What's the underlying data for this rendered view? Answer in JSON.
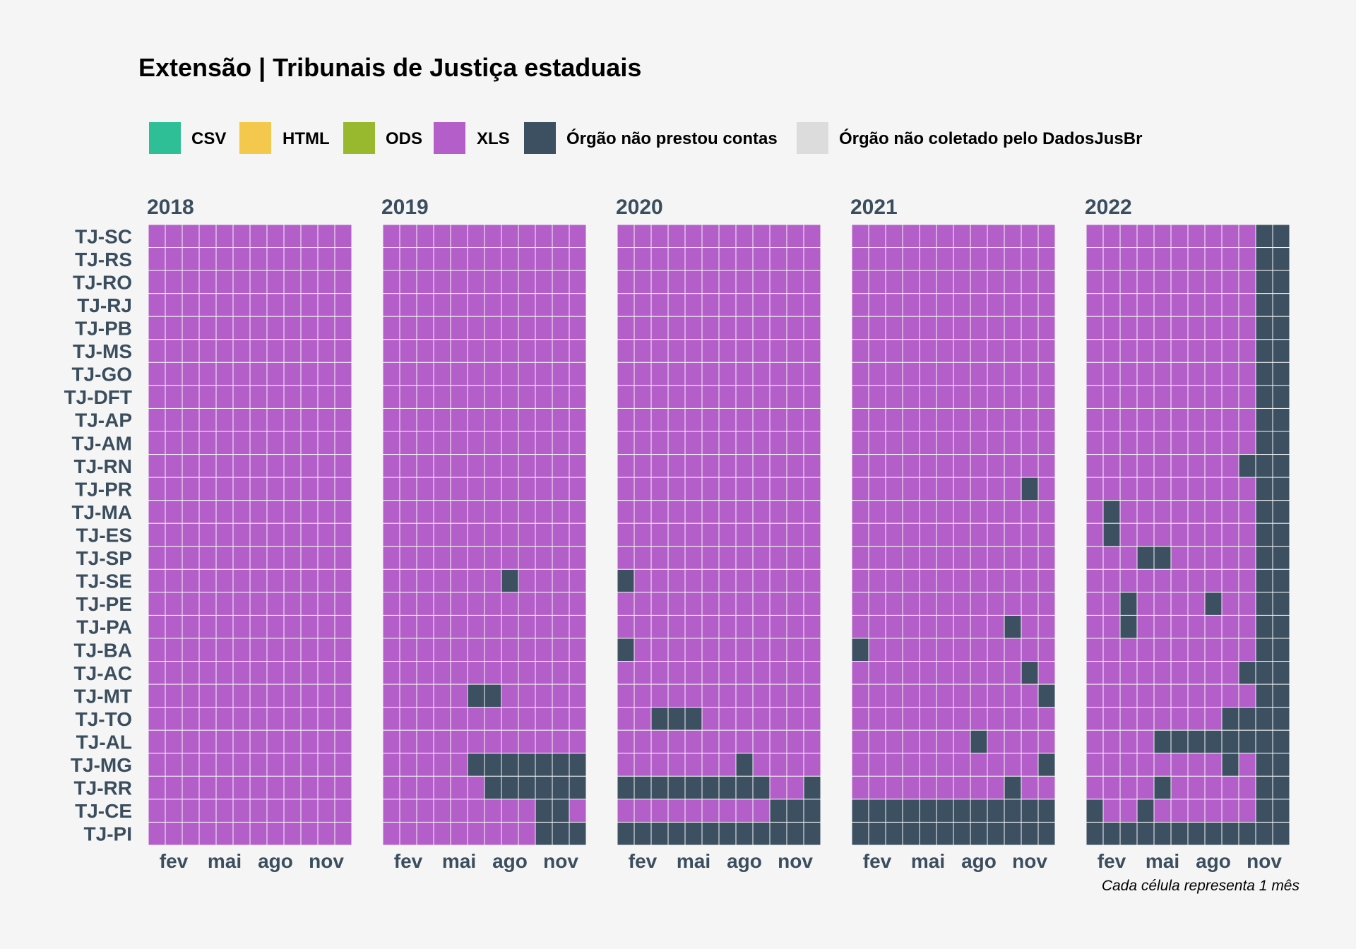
{
  "chart_data": {
    "type": "heatmap",
    "title": "Extensão | Tribunais de Justiça estaduais",
    "caption": "Cada célula representa 1 mês",
    "legend": [
      {
        "key": "CSV",
        "label": "CSV",
        "color": "#2fbf97"
      },
      {
        "key": "HTML",
        "label": "HTML",
        "color": "#f4c84d"
      },
      {
        "key": "ODS",
        "label": "ODS",
        "color": "#98b92e"
      },
      {
        "key": "XLS",
        "label": "XLS",
        "color": "#b45fc9"
      },
      {
        "key": "NAO_PRESTOU",
        "label": "Órgão não prestou contas",
        "color": "#3c5061"
      },
      {
        "key": "NAO_COLETADO",
        "label": "Órgão não coletado pelo DadosJusBr",
        "color": "#dcdcdc"
      }
    ],
    "legend_position": "top",
    "years": [
      "2018",
      "2019",
      "2020",
      "2021",
      "2022"
    ],
    "month_tick_labels": [
      {
        "month": 2,
        "label": "fev"
      },
      {
        "month": 5,
        "label": "mai"
      },
      {
        "month": 8,
        "label": "ago"
      },
      {
        "month": 11,
        "label": "nov"
      }
    ],
    "rows": [
      "TJ-SC",
      "TJ-RS",
      "TJ-RO",
      "TJ-RJ",
      "TJ-PB",
      "TJ-MS",
      "TJ-GO",
      "TJ-DFT",
      "TJ-AP",
      "TJ-AM",
      "TJ-RN",
      "TJ-PR",
      "TJ-MA",
      "TJ-ES",
      "TJ-SP",
      "TJ-SE",
      "TJ-PE",
      "TJ-PA",
      "TJ-BA",
      "TJ-AC",
      "TJ-MT",
      "TJ-TO",
      "TJ-AL",
      "TJ-MG",
      "TJ-RR",
      "TJ-CE",
      "TJ-PI"
    ],
    "default_value": "XLS",
    "exceptions": [
      {
        "year": "2019",
        "row": "TJ-SE",
        "months": [
          8
        ],
        "value": "NAO_PRESTOU"
      },
      {
        "year": "2019",
        "row": "TJ-MT",
        "months": [
          6,
          7
        ],
        "value": "NAO_PRESTOU"
      },
      {
        "year": "2019",
        "row": "TJ-MG",
        "months": [
          6,
          7,
          8,
          9,
          10,
          11,
          12
        ],
        "value": "NAO_PRESTOU"
      },
      {
        "year": "2019",
        "row": "TJ-RR",
        "months": [
          7,
          8,
          9,
          10,
          11,
          12
        ],
        "value": "NAO_PRESTOU"
      },
      {
        "year": "2019",
        "row": "TJ-CE",
        "months": [
          10,
          11
        ],
        "value": "NAO_PRESTOU"
      },
      {
        "year": "2019",
        "row": "TJ-PI",
        "months": [
          10,
          11,
          12
        ],
        "value": "NAO_PRESTOU"
      },
      {
        "year": "2020",
        "row": "TJ-SE",
        "months": [
          1
        ],
        "value": "NAO_PRESTOU"
      },
      {
        "year": "2020",
        "row": "TJ-BA",
        "months": [
          1
        ],
        "value": "NAO_PRESTOU"
      },
      {
        "year": "2020",
        "row": "TJ-TO",
        "months": [
          3,
          4,
          5
        ],
        "value": "NAO_PRESTOU"
      },
      {
        "year": "2020",
        "row": "TJ-MG",
        "months": [
          8
        ],
        "value": "NAO_PRESTOU"
      },
      {
        "year": "2020",
        "row": "TJ-RR",
        "months": [
          1,
          2,
          3,
          4,
          5,
          6,
          7,
          8,
          9,
          12
        ],
        "value": "NAO_PRESTOU"
      },
      {
        "year": "2020",
        "row": "TJ-CE",
        "months": [
          10,
          11,
          12
        ],
        "value": "NAO_PRESTOU"
      },
      {
        "year": "2020",
        "row": "TJ-PI",
        "months": [
          1,
          2,
          3,
          4,
          5,
          6,
          7,
          8,
          9,
          10,
          11,
          12
        ],
        "value": "NAO_PRESTOU"
      },
      {
        "year": "2021",
        "row": "TJ-PR",
        "months": [
          11
        ],
        "value": "NAO_PRESTOU"
      },
      {
        "year": "2021",
        "row": "TJ-PA",
        "months": [
          10
        ],
        "value": "NAO_PRESTOU"
      },
      {
        "year": "2021",
        "row": "TJ-BA",
        "months": [
          1
        ],
        "value": "NAO_PRESTOU"
      },
      {
        "year": "2021",
        "row": "TJ-AC",
        "months": [
          11
        ],
        "value": "NAO_PRESTOU"
      },
      {
        "year": "2021",
        "row": "TJ-MT",
        "months": [
          12
        ],
        "value": "NAO_PRESTOU"
      },
      {
        "year": "2021",
        "row": "TJ-AL",
        "months": [
          8
        ],
        "value": "NAO_PRESTOU"
      },
      {
        "year": "2021",
        "row": "TJ-MG",
        "months": [
          12
        ],
        "value": "NAO_PRESTOU"
      },
      {
        "year": "2021",
        "row": "TJ-RR",
        "months": [
          10
        ],
        "value": "NAO_PRESTOU"
      },
      {
        "year": "2021",
        "row": "TJ-CE",
        "months": [
          1,
          2,
          3,
          4,
          5,
          6,
          7,
          8,
          9,
          10,
          11,
          12
        ],
        "value": "NAO_PRESTOU"
      },
      {
        "year": "2021",
        "row": "TJ-PI",
        "months": [
          1,
          2,
          3,
          4,
          5,
          6,
          7,
          8,
          9,
          10,
          11,
          12
        ],
        "value": "NAO_PRESTOU"
      },
      {
        "year": "2022",
        "rows_all": true,
        "months": [
          11,
          12
        ],
        "value": "NAO_PRESTOU"
      },
      {
        "year": "2022",
        "row": "TJ-RN",
        "months": [
          10
        ],
        "value": "NAO_PRESTOU"
      },
      {
        "year": "2022",
        "row": "TJ-MA",
        "months": [
          2
        ],
        "value": "NAO_PRESTOU"
      },
      {
        "year": "2022",
        "row": "TJ-ES",
        "months": [
          2
        ],
        "value": "NAO_PRESTOU"
      },
      {
        "year": "2022",
        "row": "TJ-SP",
        "months": [
          4,
          5
        ],
        "value": "NAO_PRESTOU"
      },
      {
        "year": "2022",
        "row": "TJ-PE",
        "months": [
          3,
          8
        ],
        "value": "NAO_PRESTOU"
      },
      {
        "year": "2022",
        "row": "TJ-PA",
        "months": [
          3
        ],
        "value": "NAO_PRESTOU"
      },
      {
        "year": "2022",
        "row": "TJ-AC",
        "months": [
          10
        ],
        "value": "NAO_PRESTOU"
      },
      {
        "year": "2022",
        "row": "TJ-TO",
        "months": [
          9,
          10
        ],
        "value": "NAO_PRESTOU"
      },
      {
        "year": "2022",
        "row": "TJ-AL",
        "months": [
          5,
          6,
          7,
          8,
          9,
          10
        ],
        "value": "NAO_PRESTOU"
      },
      {
        "year": "2022",
        "row": "TJ-MG",
        "months": [
          9
        ],
        "value": "NAO_PRESTOU"
      },
      {
        "year": "2022",
        "row": "TJ-RR",
        "months": [
          5
        ],
        "value": "NAO_PRESTOU"
      },
      {
        "year": "2022",
        "row": "TJ-CE",
        "months": [
          1,
          4
        ],
        "value": "NAO_PRESTOU"
      },
      {
        "year": "2022",
        "row": "TJ-PI",
        "months": [
          1,
          2,
          3,
          4,
          5,
          6,
          7,
          8,
          9,
          10
        ],
        "value": "NAO_PRESTOU"
      }
    ]
  }
}
